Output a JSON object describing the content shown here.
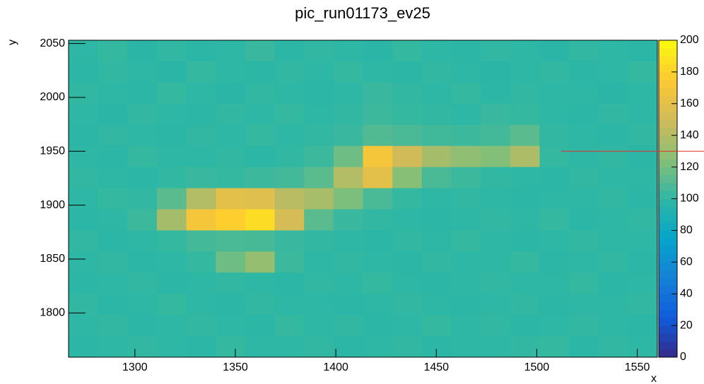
{
  "chart_data": {
    "type": "heatmap",
    "title": "pic_run01173_ev25",
    "xlabel": "x",
    "ylabel": "y",
    "xlim": [
      1267,
      1560
    ],
    "ylim": [
      1759,
      2053
    ],
    "xticks": [
      1300,
      1350,
      1400,
      1450,
      1500,
      1550
    ],
    "yticks": [
      1800,
      1850,
      1900,
      1950,
      2000,
      2050
    ],
    "zlim": [
      0,
      200
    ],
    "zticks": [
      0,
      20,
      40,
      60,
      80,
      100,
      120,
      140,
      160,
      180,
      200
    ],
    "colorscale": [
      "#352a87",
      "#0f5cdd",
      "#1481d6",
      "#06a4ca",
      "#2eb7a4",
      "#87bf77",
      "#d1bb59",
      "#fec832",
      "#f9fb0e"
    ],
    "z": [
      [
        100,
        102,
        98,
        101,
        99,
        100,
        103,
        99,
        101,
        100,
        98,
        102,
        100,
        99,
        101,
        100,
        98,
        101,
        100,
        99
      ],
      [
        99,
        101,
        100,
        98,
        102,
        100,
        99,
        101,
        100,
        102,
        100,
        99,
        101,
        100,
        98,
        100,
        101,
        99,
        100,
        102
      ],
      [
        101,
        100,
        99,
        102,
        100,
        98,
        101,
        100,
        99,
        100,
        103,
        101,
        100,
        102,
        99,
        101,
        100,
        100,
        98,
        100
      ],
      [
        100,
        98,
        101,
        100,
        99,
        101,
        100,
        102,
        100,
        101,
        104,
        102,
        101,
        100,
        103,
        102,
        100,
        99,
        101,
        100
      ],
      [
        99,
        101,
        100,
        99,
        101,
        100,
        102,
        100,
        101,
        103,
        110,
        108,
        105,
        104,
        106,
        112,
        101,
        100,
        99,
        101
      ],
      [
        100,
        99,
        102,
        100,
        100,
        101,
        99,
        101,
        104,
        118,
        170,
        150,
        135,
        128,
        124,
        138,
        102,
        100,
        101,
        99
      ],
      [
        101,
        100,
        99,
        101,
        103,
        102,
        104,
        106,
        112,
        140,
        160,
        125,
        108,
        104,
        101,
        100,
        99,
        101,
        100,
        100
      ],
      [
        100,
        102,
        101,
        112,
        140,
        160,
        158,
        142,
        136,
        122,
        108,
        102,
        100,
        101,
        100,
        99,
        100,
        100,
        101,
        99
      ],
      [
        99,
        100,
        104,
        135,
        170,
        178,
        185,
        152,
        112,
        103,
        101,
        100,
        99,
        100,
        101,
        100,
        102,
        99,
        100,
        101
      ],
      [
        101,
        99,
        100,
        102,
        106,
        108,
        107,
        103,
        101,
        100,
        99,
        101,
        100,
        102,
        100,
        99,
        100,
        101,
        100,
        100
      ],
      [
        100,
        101,
        99,
        100,
        102,
        118,
        130,
        104,
        100,
        101,
        100,
        99,
        101,
        100,
        100,
        102,
        99,
        100,
        101,
        99
      ],
      [
        99,
        100,
        101,
        99,
        100,
        101,
        100,
        99,
        101,
        100,
        102,
        100,
        99,
        100,
        101,
        100,
        100,
        102,
        99,
        100
      ],
      [
        101,
        99,
        100,
        102,
        100,
        99,
        101,
        100,
        100,
        99,
        100,
        101,
        100,
        99,
        100,
        101,
        99,
        100,
        100,
        101
      ],
      [
        100,
        101,
        99,
        100,
        101,
        100,
        99,
        102,
        100,
        101,
        99,
        100,
        102,
        100,
        101,
        99,
        100,
        101,
        100,
        99
      ],
      [
        99,
        100,
        101,
        100,
        99,
        102,
        100,
        100,
        101,
        99,
        100,
        101,
        99,
        100,
        100,
        101,
        102,
        99,
        101,
        100
      ]
    ],
    "marker_line": {
      "y": 1950,
      "x_start": 1512,
      "color": "#e0302a"
    }
  }
}
